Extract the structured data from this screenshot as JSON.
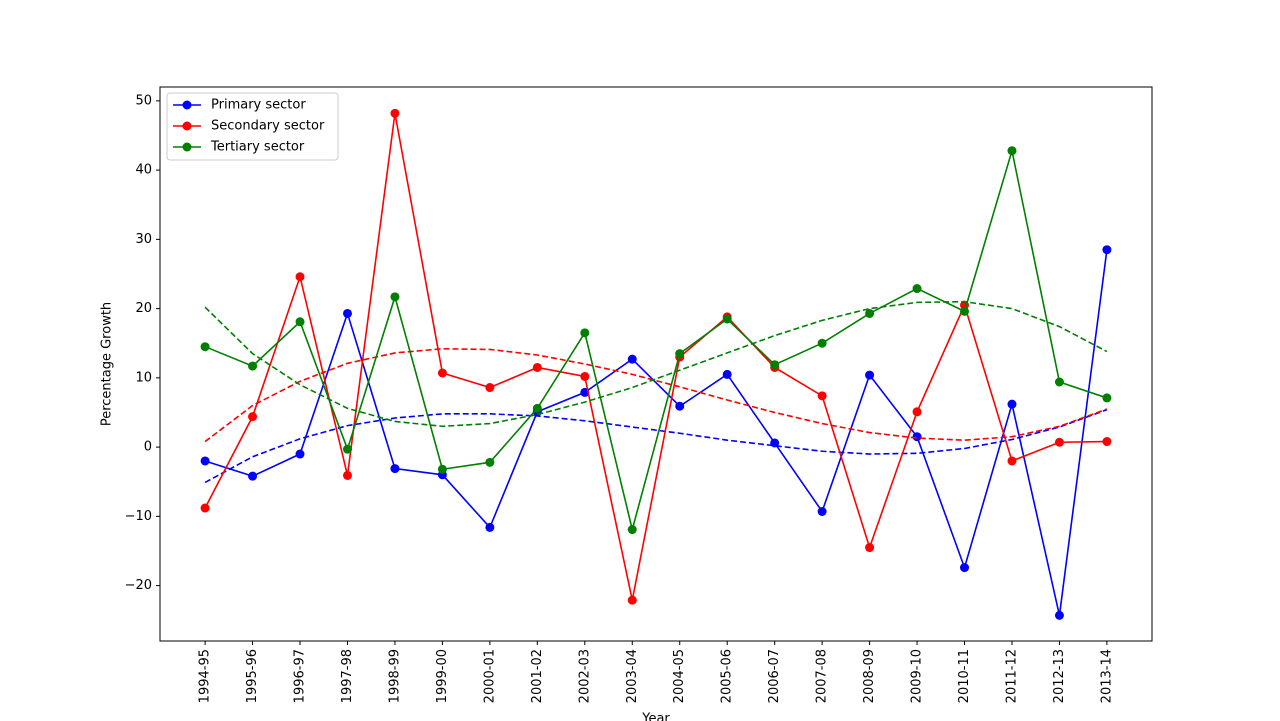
{
  "chart_data": {
    "type": "line",
    "x_label": "Year",
    "y_label": "Percentage Growth",
    "categories": [
      "1994-95",
      "1995-96",
      "1996-97",
      "1997-98",
      "1998-99",
      "1999-00",
      "2000-01",
      "2001-02",
      "2002-03",
      "2003-04",
      "2004-05",
      "2005-06",
      "2006-07",
      "2007-08",
      "2008-09",
      "2009-10",
      "2010-11",
      "2011-12",
      "2012-13",
      "2013-14"
    ],
    "series": [
      {
        "name": "Primary sector",
        "color": "#0000ff",
        "values": [
          -2.0,
          -4.2,
          -1.0,
          19.3,
          -3.1,
          -4.0,
          -11.6,
          5.1,
          7.9,
          12.7,
          5.9,
          10.5,
          0.6,
          -9.3,
          10.4,
          1.5,
          -17.4,
          6.2,
          -24.3,
          28.5
        ],
        "trend": [
          -5.1,
          -1.4,
          1.2,
          3.1,
          4.2,
          4.8,
          4.8,
          4.5,
          3.8,
          2.9,
          2.0,
          1.0,
          0.2,
          -0.6,
          -1.0,
          -0.9,
          -0.2,
          1.1,
          2.9,
          5.4
        ]
      },
      {
        "name": "Secondary sector",
        "color": "#ff0000",
        "values": [
          -8.8,
          4.4,
          24.6,
          -4.1,
          48.2,
          10.7,
          8.6,
          11.5,
          10.2,
          -22.1,
          13.0,
          18.8,
          11.5,
          7.4,
          -14.5,
          5.1,
          20.5,
          -2.0,
          0.7,
          0.8
        ],
        "trend": [
          0.8,
          6.0,
          9.5,
          12.1,
          13.6,
          14.2,
          14.1,
          13.3,
          12.0,
          10.5,
          8.7,
          6.8,
          5.0,
          3.4,
          2.1,
          1.3,
          1.0,
          1.5,
          3.0,
          5.5
        ]
      },
      {
        "name": "Tertiary sector",
        "color": "#008000",
        "values": [
          14.5,
          11.7,
          18.1,
          -0.3,
          21.7,
          -3.2,
          -2.2,
          5.6,
          16.5,
          -11.9,
          13.5,
          18.5,
          11.9,
          15.0,
          19.3,
          22.9,
          19.6,
          42.8,
          9.4,
          7.1
        ],
        "trend": [
          20.2,
          13.5,
          9.0,
          5.6,
          3.7,
          3.0,
          3.4,
          4.7,
          6.5,
          8.6,
          11.1,
          13.6,
          16.1,
          18.3,
          20.0,
          20.9,
          21.0,
          20.0,
          17.4,
          13.8
        ]
      }
    ],
    "ylim": [
      -28,
      52
    ],
    "yticks": [
      {
        "value": -20,
        "label": "−20"
      },
      {
        "value": -10,
        "label": "−10"
      },
      0,
      10,
      20,
      30,
      40,
      50
    ],
    "legend": "upper left",
    "grid": false
  }
}
